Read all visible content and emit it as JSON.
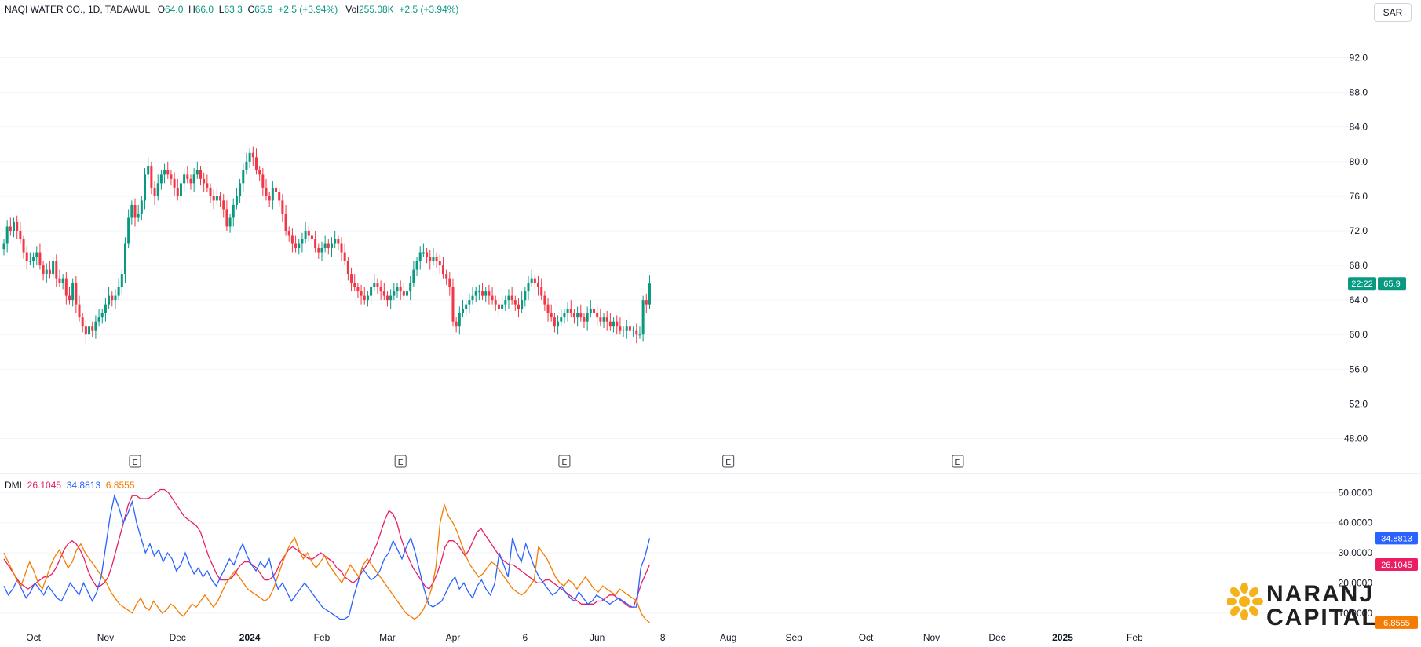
{
  "header": {
    "symbol": "NAQI WATER CO., 1D, TADAWUL",
    "o_label": "O",
    "o": "64.0",
    "h_label": "H",
    "h": "66.0",
    "l_label": "L",
    "l": "63.3",
    "c_label": "C",
    "c": "65.9",
    "change": "+2.5 (+3.94%)",
    "vol_label": "Vol",
    "vol": "255.08K",
    "vol_change": "+2.5 (+3.94%)"
  },
  "currency": "SAR",
  "dmi": {
    "label": "DMI",
    "adx": "26.1045",
    "di_plus": "34.8813",
    "di_minus": "6.8555"
  },
  "price_tags": {
    "countdown": "22:22",
    "last": "65.9"
  },
  "brand": {
    "line1": "NARANJ",
    "line2": "CAPITAL"
  },
  "colors": {
    "up": "#089981",
    "down": "#f23645",
    "adx": "#e91e63",
    "di_plus": "#2962ff",
    "di_minus": "#f57c00",
    "last_tag": "#089981"
  },
  "earnings_marker": "E",
  "chart_data": [
    {
      "type": "candlestick",
      "ylim": [
        45.5,
        96.5
      ],
      "y_ticks": [
        "92.0",
        "88.0",
        "84.0",
        "80.0",
        "76.0",
        "72.0",
        "68.0",
        "64.0",
        "60.0",
        "56.0",
        "52.0",
        "48.00"
      ],
      "x_tick_labels": [
        "Oct",
        "Nov",
        "Dec",
        "2024",
        "Feb",
        "Mar",
        "Apr",
        "6",
        "Jun",
        "8",
        "Aug",
        "Sep",
        "Oct",
        "Nov",
        "Dec",
        "2025",
        "Feb"
      ],
      "x_tick_index": [
        9,
        31,
        53,
        75,
        97,
        117,
        137,
        159,
        181,
        201,
        221,
        241,
        263,
        283,
        303,
        323,
        345
      ],
      "earnings_index": [
        40,
        121,
        171,
        221,
        291
      ],
      "close_path": [
        70.5,
        72.5,
        72.0,
        73.0,
        72.0,
        71.0,
        69.5,
        68.5,
        68.5,
        69.0,
        69.5,
        68.0,
        67.0,
        67.5,
        67.0,
        68.5,
        66.5,
        66.0,
        66.5,
        64.5,
        64.0,
        66.0,
        63.5,
        62.0,
        61.0,
        60.0,
        61.0,
        60.5,
        61.5,
        62.0,
        62.5,
        63.5,
        64.5,
        64.0,
        64.5,
        65.5,
        67.0,
        70.5,
        73.5,
        75.0,
        73.5,
        74.0,
        75.5,
        78.5,
        79.5,
        77.0,
        76.0,
        77.5,
        78.5,
        79.0,
        78.5,
        78.0,
        77.0,
        76.0,
        77.5,
        78.5,
        78.0,
        77.5,
        78.5,
        79.0,
        78.0,
        77.5,
        77.0,
        76.0,
        75.5,
        76.0,
        75.5,
        74.5,
        72.5,
        73.5,
        75.0,
        76.0,
        77.5,
        79.0,
        80.0,
        81.0,
        80.5,
        79.0,
        78.5,
        77.0,
        76.0,
        75.5,
        77.0,
        76.5,
        75.5,
        74.0,
        72.0,
        71.5,
        70.5,
        70.0,
        70.5,
        71.0,
        72.0,
        71.5,
        71.0,
        70.0,
        69.5,
        70.0,
        70.5,
        70.0,
        70.5,
        71.0,
        70.5,
        69.5,
        68.5,
        67.0,
        66.0,
        65.5,
        65.0,
        64.5,
        64.0,
        64.5,
        65.5,
        66.0,
        65.5,
        65.0,
        64.5,
        64.0,
        64.5,
        65.0,
        65.5,
        65.0,
        64.5,
        65.0,
        66.0,
        67.5,
        68.5,
        69.5,
        69.5,
        69.0,
        68.5,
        69.0,
        68.5,
        68.0,
        67.0,
        66.5,
        65.5,
        61.5,
        61.0,
        62.5,
        63.0,
        63.5,
        64.0,
        64.5,
        65.0,
        65.0,
        64.5,
        65.0,
        64.5,
        64.0,
        63.5,
        63.0,
        63.5,
        64.0,
        64.5,
        64.0,
        63.5,
        63.0,
        64.0,
        65.0,
        66.0,
        66.5,
        66.0,
        65.5,
        64.5,
        63.5,
        62.5,
        62.0,
        61.0,
        61.5,
        62.0,
        62.5,
        63.0,
        62.5,
        62.0,
        62.5,
        62.0,
        61.5,
        62.5,
        63.0,
        62.5,
        62.0,
        61.5,
        62.0,
        61.5,
        61.0,
        61.5,
        61.0,
        60.5,
        60.5,
        61.0,
        60.5,
        60.5,
        60.0,
        60.0,
        64.0,
        63.5,
        65.9
      ]
    },
    {
      "type": "line",
      "title": "DMI",
      "ylim": [
        5.0,
        54.0
      ],
      "y_ticks": [
        "50.0000",
        "40.0000",
        "30.0000",
        "20.0000",
        "10.0000"
      ],
      "series": [
        {
          "name": "26.1045",
          "color": "#e91e63",
          "values": [
            28,
            26,
            24,
            22,
            20,
            19,
            18,
            19,
            20,
            21,
            22,
            22,
            23,
            25,
            28,
            31,
            33,
            34,
            33,
            31,
            28,
            24,
            21,
            19,
            19,
            20,
            22,
            26,
            31,
            36,
            41,
            46,
            49,
            49,
            48,
            48,
            48,
            49,
            50,
            51,
            51,
            50,
            48,
            46,
            44,
            42,
            41,
            40,
            39,
            37,
            33,
            29,
            26,
            23,
            21,
            21,
            21,
            22,
            24,
            26,
            27,
            27,
            26,
            25,
            23,
            21,
            21,
            22,
            24,
            27,
            29,
            31,
            32,
            31,
            30,
            29,
            28,
            28,
            29,
            30,
            29,
            28,
            27,
            25,
            24,
            22,
            21,
            20,
            21,
            23,
            25,
            27,
            30,
            33,
            37,
            41,
            44,
            43,
            40,
            35,
            31,
            28,
            25,
            23,
            21,
            19,
            18,
            20,
            23,
            27,
            32,
            34,
            34,
            33,
            31,
            29,
            31,
            34,
            37,
            38,
            36,
            34,
            32,
            30,
            28,
            27,
            26,
            26,
            25,
            24,
            23,
            22,
            21,
            20,
            20,
            21,
            21,
            20,
            19,
            18,
            17,
            16,
            15,
            14,
            13,
            13,
            13,
            13,
            14,
            14,
            15,
            16,
            16,
            15,
            14,
            13,
            12,
            12,
            16,
            20,
            23,
            26.1045
          ]
        },
        {
          "name": "34.8813",
          "color": "#2962ff",
          "values": [
            19,
            16,
            18,
            21,
            18,
            15,
            17,
            20,
            18,
            16,
            19,
            17,
            15,
            14,
            17,
            20,
            18,
            16,
            20,
            17,
            14,
            17,
            22,
            32,
            42,
            49,
            45,
            40,
            43,
            47,
            40,
            35,
            30,
            33,
            29,
            31,
            27,
            30,
            28,
            24,
            26,
            30,
            26,
            23,
            25,
            22,
            24,
            21,
            19,
            22,
            25,
            28,
            26,
            30,
            33,
            29,
            26,
            24,
            27,
            25,
            28,
            22,
            18,
            20,
            17,
            14,
            16,
            18,
            20,
            18,
            16,
            14,
            12,
            11,
            10,
            9,
            8,
            8,
            9,
            15,
            20,
            25,
            23,
            21,
            22,
            24,
            28,
            30,
            34,
            31,
            28,
            32,
            35,
            30,
            24,
            18,
            13,
            12,
            13,
            14,
            17,
            20,
            22,
            18,
            20,
            17,
            15,
            19,
            21,
            18,
            16,
            20,
            30,
            26,
            22,
            35,
            30,
            27,
            33,
            29,
            25,
            22,
            20,
            18,
            16,
            17,
            19,
            17,
            15,
            14,
            17,
            15,
            13,
            14,
            16,
            15,
            14,
            13,
            14,
            15,
            14,
            13,
            12,
            12,
            25,
            29,
            34.8813
          ]
        },
        {
          "name": "6.8555",
          "color": "#f57c00",
          "values": [
            30,
            27,
            24,
            21,
            19,
            23,
            27,
            24,
            20,
            18,
            22,
            26,
            29,
            31,
            28,
            25,
            27,
            31,
            33,
            30,
            28,
            26,
            24,
            22,
            20,
            17,
            15,
            13,
            12,
            11,
            10,
            13,
            15,
            12,
            11,
            14,
            12,
            10,
            11,
            13,
            12,
            10,
            9,
            11,
            13,
            12,
            14,
            16,
            14,
            12,
            14,
            17,
            20,
            22,
            24,
            22,
            20,
            18,
            17,
            16,
            15,
            14,
            15,
            18,
            22,
            26,
            30,
            33,
            35,
            31,
            28,
            30,
            27,
            25,
            27,
            29,
            26,
            24,
            22,
            20,
            23,
            26,
            24,
            22,
            26,
            28,
            26,
            24,
            22,
            20,
            18,
            16,
            14,
            12,
            10,
            9,
            8,
            9,
            11,
            14,
            18,
            25,
            40,
            46,
            42,
            40,
            37,
            33,
            29,
            26,
            24,
            22,
            23,
            25,
            27,
            26,
            24,
            22,
            20,
            18,
            17,
            16,
            17,
            19,
            21,
            32,
            30,
            28,
            25,
            22,
            20,
            19,
            21,
            20,
            18,
            20,
            22,
            20,
            18,
            17,
            19,
            18,
            17,
            16,
            18,
            17,
            16,
            15,
            14,
            10,
            8,
            6.8555
          ]
        }
      ]
    }
  ]
}
